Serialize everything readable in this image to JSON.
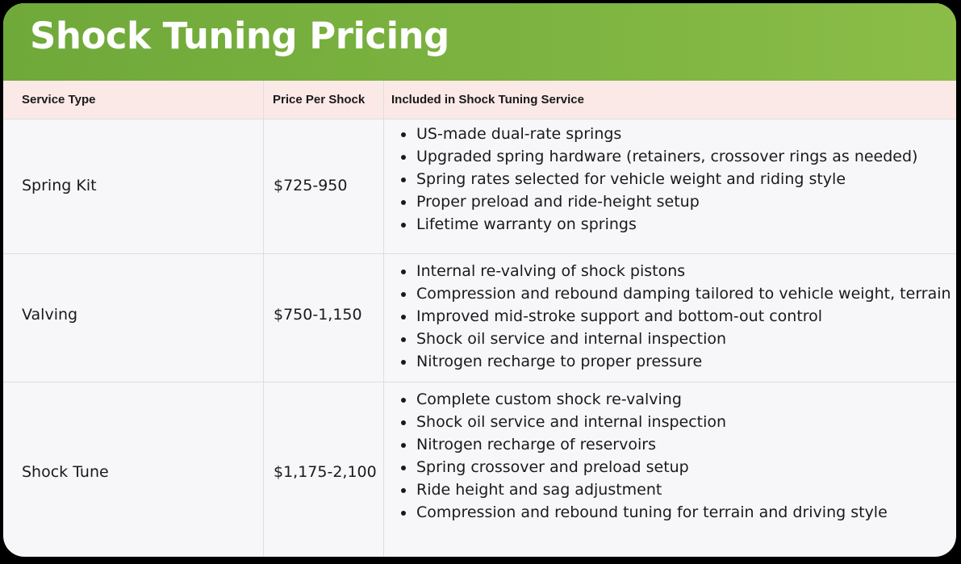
{
  "title": "Shock Tuning Pricing",
  "table": {
    "headers": [
      "Service Type",
      "Price Per Shock",
      "Included in Shock Tuning Service"
    ],
    "rows": [
      {
        "service": "Spring Kit",
        "price": "$725-950",
        "included": [
          "US-made dual-rate springs",
          "Upgraded spring hardware (retainers, crossover rings as needed)",
          "Spring rates selected for vehicle weight and riding style",
          "Proper preload and ride-height setup",
          "Lifetime warranty on springs"
        ]
      },
      {
        "service": "Valving",
        "price": "$750-1,150",
        "included": [
          "Internal re-valving of shock pistons",
          "Compression and rebound damping tailored to vehicle weight, terrain",
          "Improved mid-stroke support and bottom-out control",
          "Shock oil service and internal inspection",
          "Nitrogen recharge to proper pressure"
        ]
      },
      {
        "service": "Shock Tune",
        "price": "$1,175-2,100",
        "included": [
          "Complete custom shock re-valving",
          "Shock oil service and internal inspection",
          "Nitrogen recharge of reservoirs",
          "Spring crossover and preload setup",
          "Ride height and sag adjustment",
          "Compression and rebound tuning for terrain and driving style"
        ]
      }
    ]
  }
}
